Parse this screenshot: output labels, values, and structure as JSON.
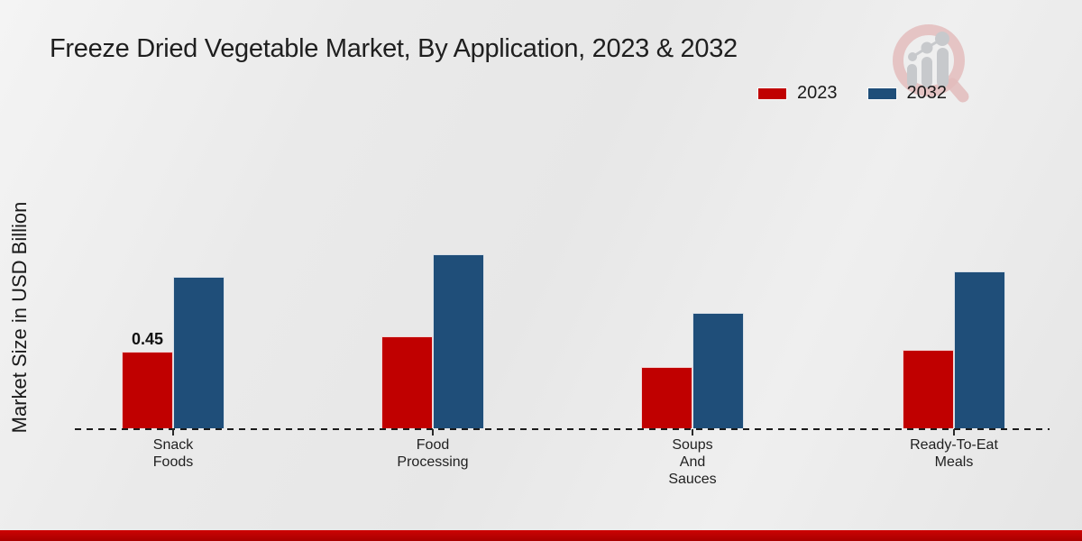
{
  "title": "Freeze Dried Vegetable Market, By Application, 2023 & 2032",
  "ylabel": "Market Size in USD Billion",
  "colors": {
    "series_2023": "#c00000",
    "series_2032": "#1f4e79",
    "footer_top": "#cd0303",
    "footer_bottom": "#a80000",
    "axis": "#1a1a1a",
    "background": "#eaeaea",
    "logo_ring": "#e3bcbc",
    "logo_gray": "#c7c9cc"
  },
  "legend": {
    "items": [
      {
        "label": "2023",
        "color": "#c00000"
      },
      {
        "label": "2032",
        "color": "#1f4e79"
      }
    ]
  },
  "chart_data": {
    "type": "bar",
    "title": "Freeze Dried Vegetable Market, By Application, 2023 & 2032",
    "xlabel": "",
    "ylabel": "Market Size in USD Billion",
    "categories": [
      "Snack Foods",
      "Food Processing",
      "Soups And Sauces",
      "Ready-To-Eat Meals"
    ],
    "category_label_lines": [
      [
        "Snack",
        "Foods"
      ],
      [
        "Food",
        "Processing"
      ],
      [
        "Soups",
        "And",
        "Sauces"
      ],
      [
        "Ready-To-Eat",
        "Meals"
      ]
    ],
    "series": [
      {
        "name": "2023",
        "color": "#c00000",
        "values": [
          0.45,
          0.54,
          0.36,
          0.46
        ]
      },
      {
        "name": "2032",
        "color": "#1f4e79",
        "values": [
          0.89,
          1.02,
          0.68,
          0.92
        ]
      }
    ],
    "bar_value_labels": [
      {
        "series": "2023",
        "category": "Snack Foods",
        "text": "0.45"
      }
    ],
    "ylim": [
      0,
      1.15
    ],
    "grid": false,
    "legend_position": "top-right",
    "baseline_style": "dashed"
  },
  "watermark": {
    "name": "magnifier-growth-chart-logo"
  }
}
